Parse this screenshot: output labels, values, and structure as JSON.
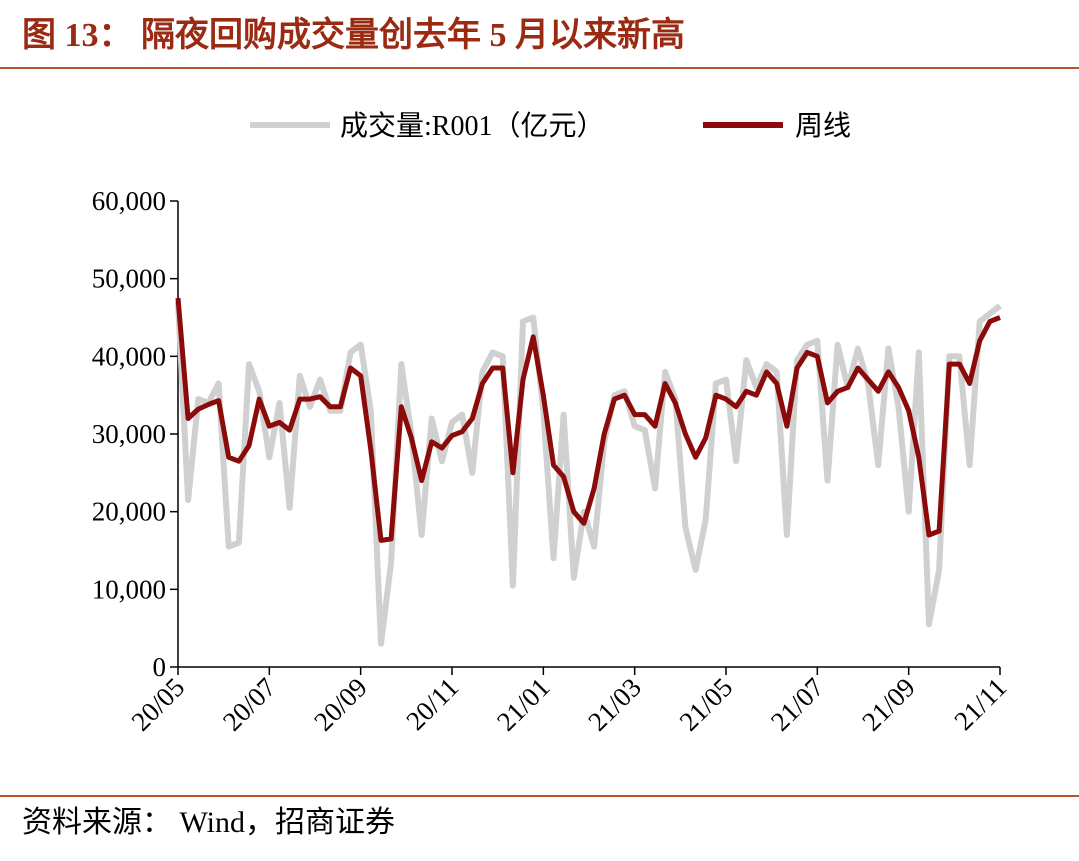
{
  "title": "图 13： 隔夜回购成交量创去年 5 月以来新高",
  "source": "资料来源： Wind，招商证券",
  "chart_data": {
    "type": "line",
    "categories": [
      "20/05",
      null,
      null,
      null,
      null,
      null,
      null,
      null,
      null,
      "20/07",
      null,
      null,
      null,
      null,
      null,
      null,
      null,
      null,
      "20/09",
      null,
      null,
      null,
      null,
      null,
      null,
      null,
      null,
      "20/11",
      null,
      null,
      null,
      null,
      null,
      null,
      null,
      null,
      "21/01",
      null,
      null,
      null,
      null,
      null,
      null,
      null,
      null,
      "21/03",
      null,
      null,
      null,
      null,
      null,
      null,
      null,
      null,
      "21/05",
      null,
      null,
      null,
      null,
      null,
      null,
      null,
      null,
      "21/07",
      null,
      null,
      null,
      null,
      null,
      null,
      null,
      null,
      "21/09",
      null,
      null,
      null,
      null,
      null,
      null,
      null,
      null,
      "21/11"
    ],
    "series": [
      {
        "name": "成交量:R001（亿元）",
        "color": "#d0d0d0",
        "values": [
          47000,
          21500,
          34500,
          34000,
          36500,
          15500,
          16000,
          39000,
          35500,
          27000,
          34000,
          20500,
          37500,
          33500,
          37000,
          33000,
          33000,
          40500,
          41500,
          33000,
          3000,
          13500,
          39000,
          30000,
          17000,
          32000,
          26500,
          31500,
          32500,
          25000,
          38000,
          40500,
          40000,
          10500,
          44500,
          45000,
          33000,
          14000,
          32500,
          11500,
          20000,
          15500,
          29000,
          35000,
          35500,
          31000,
          30500,
          23000,
          38000,
          34500,
          18000,
          12500,
          19000,
          36500,
          37000,
          26500,
          39500,
          36000,
          39000,
          38000,
          17000,
          39500,
          41500,
          42000,
          24000,
          41500,
          36000,
          41000,
          36500,
          26000,
          41000,
          33500,
          20000,
          40500,
          5500,
          12500,
          40000,
          40000,
          26000,
          44500,
          45500,
          46500
        ]
      },
      {
        "name": "周线",
        "color": "#8b0a0a",
        "values": [
          47500,
          32000,
          33200,
          33800,
          34300,
          27000,
          26500,
          28500,
          34500,
          31000,
          31500,
          30500,
          34500,
          34500,
          34800,
          33500,
          33500,
          38500,
          37500,
          28000,
          16300,
          16500,
          33500,
          29500,
          24000,
          29000,
          28200,
          29800,
          30300,
          32000,
          36500,
          38500,
          38500,
          25000,
          37000,
          42500,
          35000,
          26000,
          24500,
          20000,
          18500,
          23000,
          30000,
          34500,
          35000,
          32500,
          32500,
          31000,
          36500,
          34000,
          30000,
          27000,
          29500,
          35000,
          34500,
          33500,
          35500,
          35000,
          38000,
          36500,
          31000,
          38500,
          40500,
          40000,
          34000,
          35500,
          36000,
          38500,
          37000,
          35500,
          38000,
          36000,
          33000,
          27000,
          17000,
          17500,
          39000,
          39000,
          36500,
          42000,
          44500,
          45000
        ]
      }
    ],
    "ylim": [
      0,
      60000
    ],
    "yticks": [
      0,
      {
        "value": 10000,
        "label": "10,000"
      },
      {
        "value": 20000,
        "label": "20,000"
      },
      {
        "value": 30000,
        "label": "30,000"
      },
      {
        "value": 40000,
        "label": "40,000"
      },
      {
        "value": 50000,
        "label": "50,000"
      },
      {
        "value": 60000,
        "label": "60,000"
      }
    ],
    "legend": "top"
  }
}
